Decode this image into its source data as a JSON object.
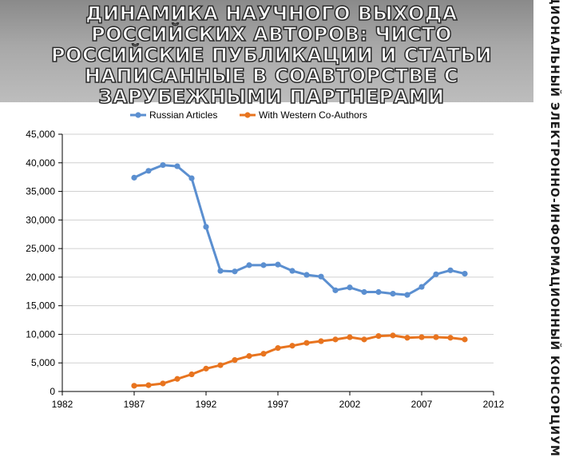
{
  "slide": {
    "title": "ДИНАМИКА НАУЧНОГО ВЫХОДА РОССИЙСКИХ АВТОРОВ: ЧИСТО РОССИЙСКИЕ ПУБЛИКАЦИИ И СТАТЬИ НАПИСАННЫЕ В СОАВТОРСТВЕ С ЗАРУБЕЖНЫМИ ПАРТНЕРАМИ",
    "side_caption": "НАЦИОНАЛЬНЫЙ ЭЛЕКТРОННО-ИНФОРМАЦИОННЫЙ КОНСОРЦИУМ"
  },
  "chart_data": {
    "type": "line",
    "title": "",
    "xlabel": "",
    "ylabel": "",
    "xlim": [
      1982,
      2012
    ],
    "ylim": [
      0,
      45000
    ],
    "x_ticks": [
      1982,
      1987,
      1992,
      1997,
      2002,
      2007,
      2012
    ],
    "y_ticks": [
      0,
      5000,
      10000,
      15000,
      20000,
      25000,
      30000,
      35000,
      40000,
      45000
    ],
    "x_tick_labels": [
      "1982",
      "1987",
      "1992",
      "1997",
      "2002",
      "2007",
      "2012"
    ],
    "y_tick_labels": [
      "0",
      "5,000",
      "10,000",
      "15,000",
      "20,000",
      "25,000",
      "30,000",
      "35,000",
      "40,000",
      "45,000"
    ],
    "legend_position": "top",
    "grid": "horizontal",
    "x": [
      1987,
      1988,
      1989,
      1990,
      1991,
      1992,
      1993,
      1994,
      1995,
      1996,
      1997,
      1998,
      1999,
      2000,
      2001,
      2002,
      2003,
      2004,
      2005,
      2006,
      2007,
      2008,
      2009,
      2010
    ],
    "series": [
      {
        "name": "Russian Articles",
        "color": "#5b8fd0",
        "values": [
          37400,
          38600,
          39600,
          39400,
          37300,
          28800,
          21100,
          21000,
          22100,
          22100,
          22200,
          21100,
          20400,
          20100,
          17700,
          18200,
          17400,
          17400,
          17100,
          16900,
          18300,
          20500,
          21200,
          20600
        ]
      },
      {
        "name": "With Western Co-Authors",
        "color": "#e8741f",
        "values": [
          1000,
          1100,
          1400,
          2200,
          3000,
          4000,
          4600,
          5500,
          6200,
          6600,
          7600,
          8000,
          8500,
          8800,
          9100,
          9500,
          9100,
          9700,
          9800,
          9400,
          9500,
          9500,
          9400,
          9100
        ]
      }
    ]
  }
}
